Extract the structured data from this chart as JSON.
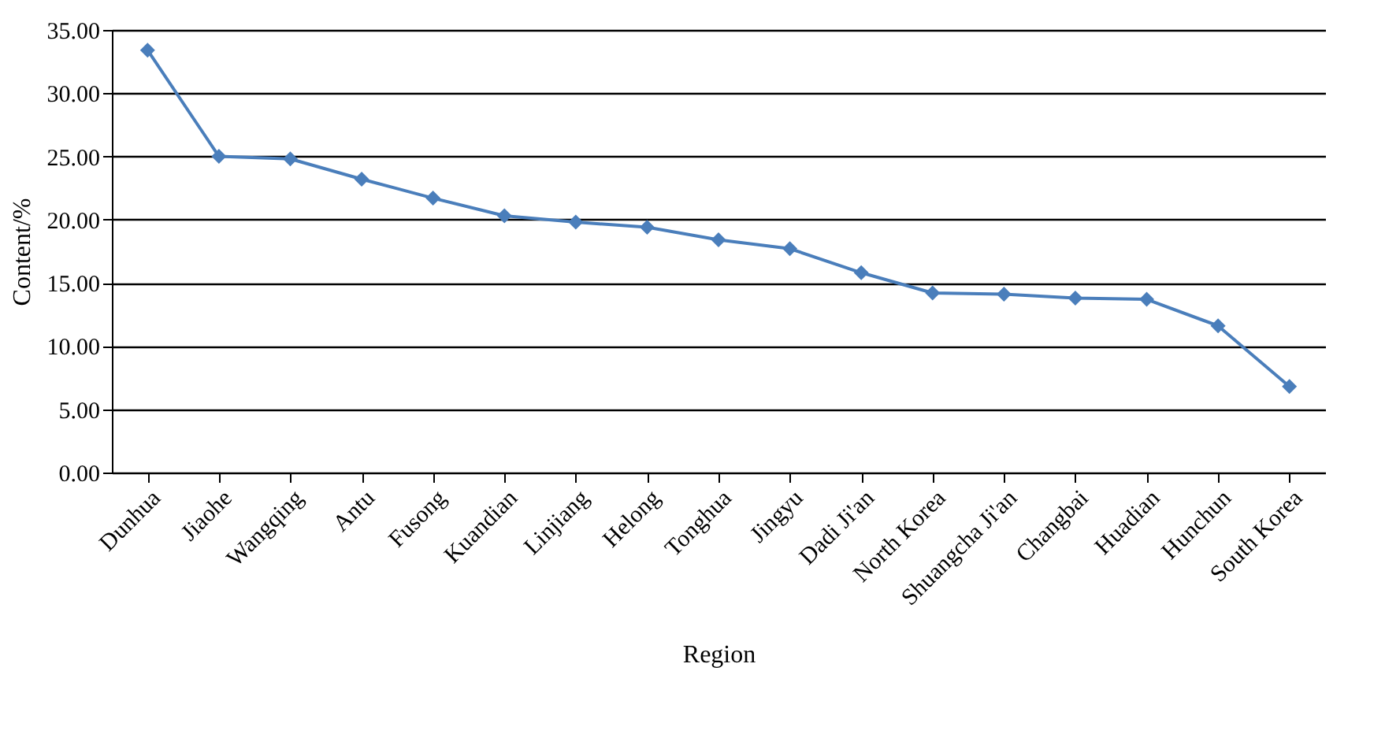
{
  "chart_data": {
    "type": "line",
    "xlabel": "Region",
    "ylabel": "Content/%",
    "categories": [
      "Dunhua",
      "Jiaohe",
      "Wangqing",
      "Antu",
      "Fusong",
      "Kuandian",
      "Linjiang",
      "Helong",
      "Tonghua",
      "Jingyu",
      "Dadi Ji'an",
      "North Korea",
      "Shuangcha Ji'an",
      "Changbai",
      "Huadian",
      "Hunchun",
      "South Korea"
    ],
    "series": [
      {
        "color": "#4a7ebb",
        "values": [
          33.4,
          25.0,
          24.8,
          23.2,
          21.7,
          20.3,
          19.8,
          19.4,
          18.4,
          17.7,
          15.8,
          14.2,
          14.1,
          13.8,
          13.7,
          11.6,
          6.8
        ]
      }
    ],
    "ylim": [
      0,
      35
    ],
    "yticks": [
      {
        "value": 0,
        "label": "0.00"
      },
      {
        "value": 5,
        "label": "5.00"
      },
      {
        "value": 10,
        "label": "10.00"
      },
      {
        "value": 15,
        "label": "15.00"
      },
      {
        "value": 20,
        "label": "20.00"
      },
      {
        "value": 25,
        "label": "25.00"
      },
      {
        "value": 30,
        "label": "30.00"
      },
      {
        "value": 35,
        "label": "35.00"
      }
    ],
    "grid": "y",
    "marker": "diamond",
    "line_style": "solid"
  }
}
